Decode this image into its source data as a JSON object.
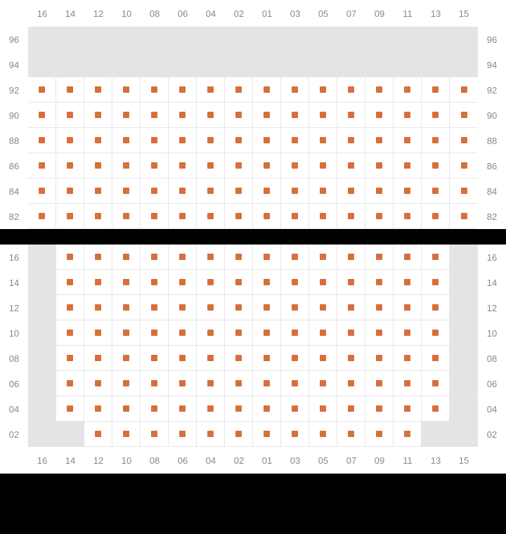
{
  "marker_color": "#d6703a",
  "empty_bg": "#e4e4e4",
  "avail_bg": "#ffffff",
  "grid_line": "#e6e6e6",
  "label_color": "#888888",
  "col_headers": [
    "16",
    "14",
    "12",
    "10",
    "08",
    "06",
    "04",
    "02",
    "01",
    "03",
    "05",
    "07",
    "09",
    "11",
    "13",
    "15"
  ],
  "blocks": [
    {
      "id": "upper",
      "show_header_top": true,
      "show_header_bottom": false,
      "rows": [
        {
          "label": "96",
          "cells": "EEEEEEEEEEEEEEEE"
        },
        {
          "label": "94",
          "cells": "EEEEEEEEEEEEEEEE"
        },
        {
          "label": "92",
          "cells": "AAAAAAAAAAAAAAAA"
        },
        {
          "label": "90",
          "cells": "AAAAAAAAAAAAAAAA"
        },
        {
          "label": "88",
          "cells": "AAAAAAAAAAAAAAAA"
        },
        {
          "label": "86",
          "cells": "AAAAAAAAAAAAAAAA"
        },
        {
          "label": "84",
          "cells": "AAAAAAAAAAAAAAAA"
        },
        {
          "label": "82",
          "cells": "AAAAAAAAAAAAAAAA"
        }
      ]
    },
    {
      "id": "lower",
      "show_header_top": false,
      "show_header_bottom": true,
      "rows": [
        {
          "label": "16",
          "cells": "EAAAAAAAAAAAAAAE"
        },
        {
          "label": "14",
          "cells": "EAAAAAAAAAAAAAAE"
        },
        {
          "label": "12",
          "cells": "EAAAAAAAAAAAAAAE"
        },
        {
          "label": "10",
          "cells": "EAAAAAAAAAAAAAAE"
        },
        {
          "label": "08",
          "cells": "EAAAAAAAAAAAAAAE"
        },
        {
          "label": "06",
          "cells": "EAAAAAAAAAAAAAAE"
        },
        {
          "label": "04",
          "cells": "EAAAAAAAAAAAAAAE"
        },
        {
          "label": "02",
          "cells": "EEAAAAAAAAAAAAEE"
        }
      ]
    }
  ]
}
